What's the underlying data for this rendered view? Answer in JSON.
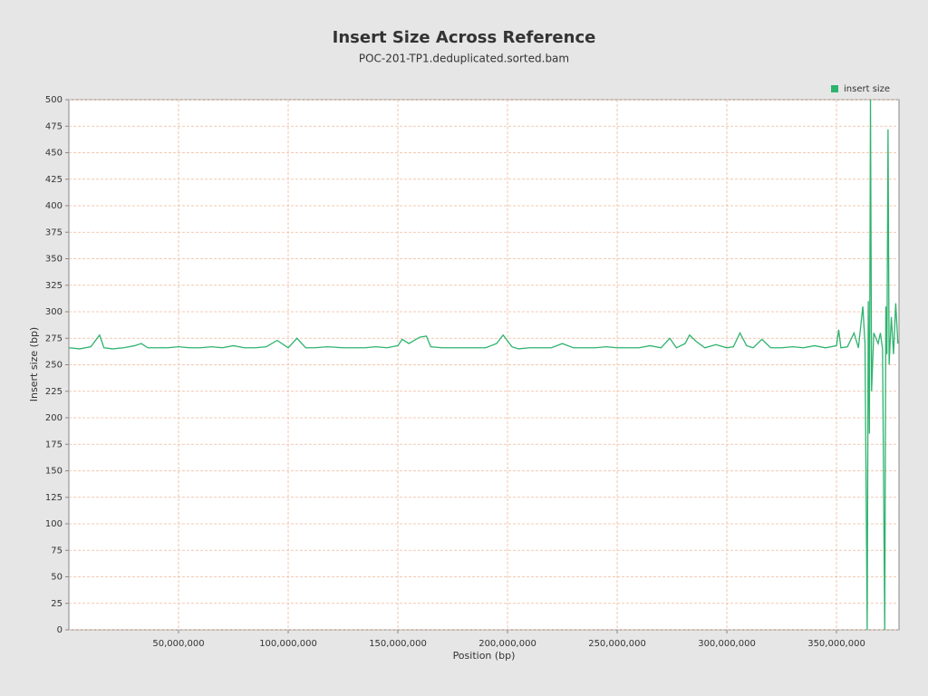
{
  "chart_data": {
    "type": "line",
    "title": "Insert Size Across Reference",
    "subtitle": "POC-201-TP1.deduplicated.sorted.bam",
    "x_label": "Position (bp)",
    "y_label": "Insert size (bp)",
    "xlim": [
      0,
      378500000
    ],
    "ylim": [
      0,
      500
    ],
    "xticks": [
      {
        "value": 50000000,
        "label": "50,000,000"
      },
      {
        "value": 100000000,
        "label": "100,000,000"
      },
      {
        "value": 150000000,
        "label": "150,000,000"
      },
      {
        "value": 200000000,
        "label": "200,000,000"
      },
      {
        "value": 250000000,
        "label": "250,000,000"
      },
      {
        "value": 300000000,
        "label": "300,000,000"
      },
      {
        "value": 350000000,
        "label": "350,000,000"
      }
    ],
    "yticks": [
      0,
      25,
      50,
      75,
      100,
      125,
      150,
      175,
      200,
      225,
      250,
      275,
      300,
      325,
      350,
      375,
      400,
      425,
      450,
      475,
      500
    ],
    "grid": true,
    "legend": "top-right",
    "series": [
      {
        "name": "insert size",
        "color": "#2eb36e",
        "x": [
          0,
          5000000,
          10000000,
          14000000,
          16000000,
          20000000,
          25000000,
          30000000,
          33000000,
          36000000,
          40000000,
          45000000,
          50000000,
          55000000,
          60000000,
          65000000,
          70000000,
          75000000,
          80000000,
          85000000,
          90000000,
          95000000,
          100000000,
          104000000,
          108000000,
          112000000,
          118000000,
          125000000,
          130000000,
          135000000,
          140000000,
          145000000,
          150000000,
          152000000,
          155000000,
          160000000,
          163000000,
          165000000,
          170000000,
          175000000,
          180000000,
          185000000,
          190000000,
          195000000,
          198000000,
          202000000,
          205000000,
          210000000,
          215000000,
          220000000,
          225000000,
          230000000,
          235000000,
          240000000,
          245000000,
          250000000,
          255000000,
          260000000,
          265000000,
          270000000,
          274000000,
          277000000,
          281000000,
          283000000,
          286000000,
          290000000,
          295000000,
          300000000,
          303000000,
          306000000,
          309000000,
          312000000,
          316000000,
          320000000,
          325000000,
          330000000,
          335000000,
          340000000,
          345000000,
          350000000,
          351000000,
          352000000,
          355000000,
          358000000,
          360000000,
          362000000,
          363000000,
          364000000,
          364500000,
          365000000,
          365500000,
          366000000,
          367000000,
          368000000,
          369000000,
          370000000,
          371000000,
          372000000,
          372500000,
          373000000,
          373500000,
          374000000,
          375000000,
          376000000,
          377000000,
          378000000
        ],
        "values": [
          266,
          265,
          267,
          278,
          266,
          265,
          266,
          268,
          270,
          266,
          266,
          266,
          267,
          266,
          266,
          267,
          266,
          268,
          266,
          266,
          267,
          273,
          266,
          275,
          266,
          266,
          267,
          266,
          266,
          266,
          267,
          266,
          268,
          274,
          270,
          276,
          277,
          267,
          266,
          266,
          266,
          266,
          266,
          270,
          278,
          267,
          265,
          266,
          266,
          266,
          270,
          266,
          266,
          266,
          267,
          266,
          266,
          266,
          268,
          266,
          275,
          266,
          270,
          278,
          272,
          266,
          269,
          266,
          267,
          280,
          268,
          266,
          274,
          266,
          266,
          267,
          266,
          268,
          266,
          268,
          283,
          266,
          267,
          280,
          266,
          305,
          270,
          0,
          310,
          185,
          500,
          225,
          280,
          275,
          270,
          280,
          265,
          0,
          305,
          260,
          472,
          250,
          295,
          260,
          308,
          270
        ]
      }
    ]
  }
}
